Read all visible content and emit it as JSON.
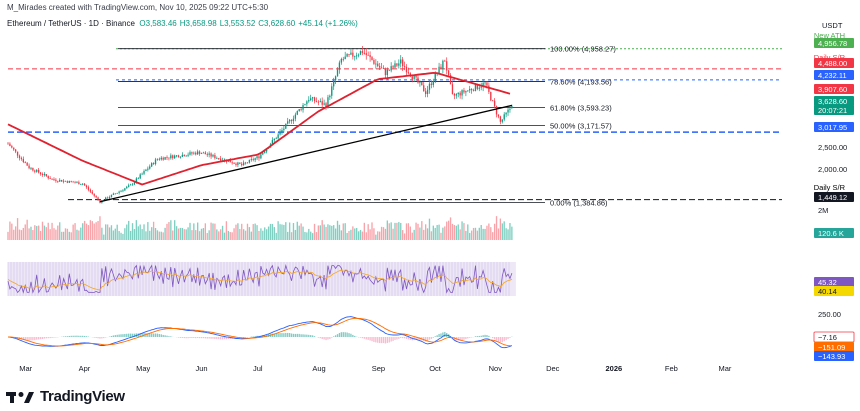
{
  "header": {
    "credit": "M_Mirades created with TradingView.com, Nov 10, 2025 09:22 UTC+5:30",
    "symbol": "Ethereum / TetherUS · 1D · Binance",
    "open": "O3,583.46",
    "high": "H3,658.98",
    "low": "L3,553.52",
    "close": "C3,628.60",
    "change": "+45.14 (+1.26%)"
  },
  "currency": "USDT",
  "colors": {
    "bull": "#089981",
    "bear": "#f23645",
    "ma": "#e0212f",
    "trendline": "#000000",
    "blue_level": "#2962ff",
    "ath": "#4caf50",
    "rsi": "#7e57c2",
    "rsi_ma": "#f5a623",
    "macd": "#2962ff",
    "signal": "#ff6d00"
  },
  "price_labels": [
    {
      "text": "New ATH",
      "kind": "caption",
      "color": "#4caf50"
    },
    {
      "text": "4,956.78",
      "kind": "tag",
      "bg": "#4caf50"
    },
    {
      "text": "Daily S/R",
      "kind": "caption",
      "color": "#f23645"
    },
    {
      "text": "4,488.00",
      "kind": "tag",
      "bg": "#f23645"
    },
    {
      "text": "4,232.11",
      "kind": "tag",
      "bg": "#2962ff"
    },
    {
      "text": "3,907.60",
      "kind": "tag",
      "bg": "#f23645"
    },
    {
      "text": "3,628.60",
      "kind": "tag",
      "bg": "#089981"
    },
    {
      "text": "20:07:21",
      "kind": "tag",
      "bg": "#089981"
    },
    {
      "text": "3,017.95",
      "kind": "tag",
      "bg": "#2962ff"
    },
    {
      "text": "Daily S/R",
      "kind": "caption",
      "color": "#000000"
    },
    {
      "text": "1,449.12",
      "kind": "tag",
      "bg": "#131722"
    },
    {
      "text": "120.6 K",
      "kind": "tag",
      "bg": "#26a69a"
    },
    {
      "text": "45.32",
      "kind": "tag",
      "bg": "#7e57c2"
    },
    {
      "text": "40.14",
      "kind": "tag",
      "bg": "#f5d800",
      "fg": "#131722"
    },
    {
      "text": "−7.16",
      "kind": "tag",
      "bg": "#ffffff",
      "fg": "#131722",
      "border": "#f23645"
    },
    {
      "text": "−151.09",
      "kind": "tag",
      "bg": "#ff6d00"
    },
    {
      "text": "−143.93",
      "kind": "tag",
      "bg": "#2962ff"
    }
  ],
  "price_ticks": [
    "2,500.00",
    "2,000.00",
    "2M",
    "250.00"
  ],
  "x_ticks": [
    "Mar",
    "Apr",
    "May",
    "Jun",
    "Jul",
    "Aug",
    "Sep",
    "Oct",
    "Nov",
    "Dec",
    "2026",
    "Feb",
    "Mar"
  ],
  "fib_levels": [
    {
      "label": "100.00% (4,958.27)",
      "price": 4958.27
    },
    {
      "label": "78.60% (4,193.56)",
      "price": 4193.56
    },
    {
      "label": "61.80% (3,593.23)",
      "price": 3593.23
    },
    {
      "label": "50.00% (3,171.57)",
      "price": 3171.57
    },
    {
      "label": "0.00% (1,384.86)",
      "price": 1384.86
    }
  ],
  "chart_data": {
    "type": "candlestick",
    "symbol": "Ethereum / TetherUS",
    "interval": "1D",
    "exchange": "Binance",
    "xlabel": "",
    "ylabel": "",
    "x_range": [
      "2025-02-20",
      "2026-03-31"
    ],
    "y_range": [
      1300,
      5300
    ],
    "horizontal_levels": [
      4956.78,
      4488.0,
      4232.11,
      3907.6,
      3017.95,
      1449.12
    ],
    "price_path": [
      {
        "date": "2025-02-20",
        "price": 2750
      },
      {
        "date": "2025-03-03",
        "price": 2200
      },
      {
        "date": "2025-03-15",
        "price": 1920
      },
      {
        "date": "2025-03-31",
        "price": 1820
      },
      {
        "date": "2025-04-09",
        "price": 1400
      },
      {
        "date": "2025-04-25",
        "price": 1780
      },
      {
        "date": "2025-05-09",
        "price": 2400
      },
      {
        "date": "2025-05-31",
        "price": 2550
      },
      {
        "date": "2025-06-22",
        "price": 2250
      },
      {
        "date": "2025-07-01",
        "price": 2450
      },
      {
        "date": "2025-07-11",
        "price": 2950
      },
      {
        "date": "2025-07-27",
        "price": 3800
      },
      {
        "date": "2025-08-05",
        "price": 3650
      },
      {
        "date": "2025-08-13",
        "price": 4700
      },
      {
        "date": "2025-08-24",
        "price": 4900
      },
      {
        "date": "2025-09-05",
        "price": 4400
      },
      {
        "date": "2025-09-13",
        "price": 4650
      },
      {
        "date": "2025-09-26",
        "price": 3950
      },
      {
        "date": "2025-10-06",
        "price": 4700
      },
      {
        "date": "2025-10-10",
        "price": 3850
      },
      {
        "date": "2025-10-27",
        "price": 4150
      },
      {
        "date": "2025-11-04",
        "price": 3250
      },
      {
        "date": "2025-11-10",
        "price": 3628.6
      }
    ],
    "ma_path": [
      {
        "date": "2025-02-20",
        "price": 3200
      },
      {
        "date": "2025-03-31",
        "price": 2350
      },
      {
        "date": "2025-05-01",
        "price": 1800
      },
      {
        "date": "2025-06-01",
        "price": 2250
      },
      {
        "date": "2025-07-01",
        "price": 2500
      },
      {
        "date": "2025-08-01",
        "price": 3500
      },
      {
        "date": "2025-09-01",
        "price": 4250
      },
      {
        "date": "2025-10-01",
        "price": 4400
      },
      {
        "date": "2025-11-10",
        "price": 3900
      }
    ],
    "trendline": [
      {
        "date": "2025-04-09",
        "price": 1400
      },
      {
        "date": "2025-11-10",
        "price": 3640
      }
    ]
  }
}
